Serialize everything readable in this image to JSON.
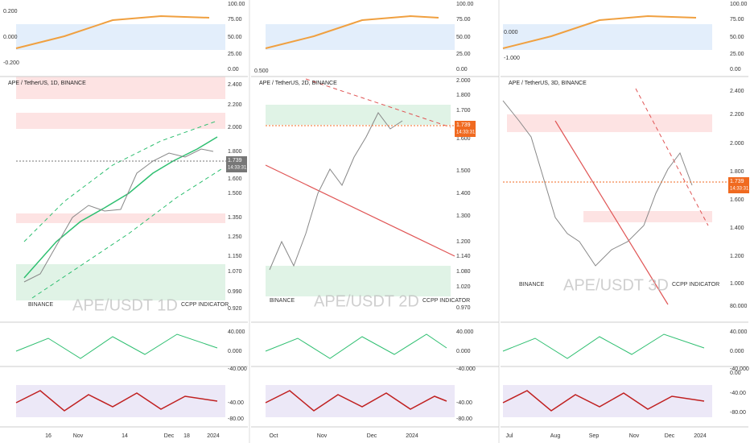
{
  "panels": [
    {
      "title": "APE / TetherUS, 1D, BINANCE",
      "watermark": "APE/USDT 1D",
      "sub_label": "CCPP INDICATOR",
      "brand": "BINANCE",
      "top_left_ticks": [
        "0.200",
        "0.000",
        "-0.200"
      ],
      "top_right_ticks": [
        "100.00",
        "75.00",
        "50.00",
        "25.00",
        "0.00"
      ],
      "price_ticks": [
        "2.400",
        "2.200",
        "2.000",
        "1.800",
        "1.600",
        "1.500",
        "1.350",
        "1.250",
        "1.150",
        "1.070",
        "0.990",
        "0.920"
      ],
      "price_current": "1.739",
      "price_time": "14:33:31",
      "osc_ticks": [
        "40.000",
        "0.000",
        "-40.000"
      ],
      "bottom_ticks": [
        "-40.00",
        "-80.00"
      ],
      "time_labels": [
        "16",
        "Nov",
        "14",
        "Dec",
        "18",
        "2024"
      ]
    },
    {
      "title": "APE / TetherUS, 2D, BINANCE",
      "watermark": "APE/USDT 2D",
      "sub_label": "CCPP INDICATOR",
      "brand": "BINANCE",
      "top_left_ticks": [
        "0.500"
      ],
      "top_right_ticks": [
        "100.00",
        "75.00",
        "50.00",
        "25.00",
        "0.00"
      ],
      "price_ticks": [
        "2.000",
        "1.800",
        "1.700",
        "1.600",
        "1.500",
        "1.400",
        "1.300",
        "1.200",
        "1.140",
        "1.080",
        "1.020",
        "0.970"
      ],
      "price_current": "1.739",
      "price_time": "14:33:31",
      "osc_ticks": [
        "40.000",
        "0.000",
        "-40.000"
      ],
      "bottom_ticks": [
        "-40.00",
        "-80.00"
      ],
      "time_labels": [
        "Oct",
        "Nov",
        "Dec",
        "2024"
      ]
    },
    {
      "title": "APE / TetherUS, 3D, BINANCE",
      "watermark": "APE/USDT 3D",
      "sub_label": "CCPP INDICATOR",
      "brand": "BINANCE",
      "top_left_ticks": [
        "0.000",
        "-1.000"
      ],
      "top_right_ticks": [
        "100.00",
        "75.00",
        "50.00",
        "25.00",
        "0.00"
      ],
      "price_ticks": [
        "2.400",
        "2.200",
        "2.000",
        "1.800",
        "1.600",
        "1.400",
        "1.200",
        "1.000",
        "80.000"
      ],
      "price_current": "1.739",
      "price_time": "14:33:31",
      "osc_ticks": [
        "40.000",
        "0.000",
        "-40.000"
      ],
      "bottom_ticks": [
        "0.00",
        "-40.00",
        "-80.00"
      ],
      "time_labels": [
        "Jul",
        "Aug",
        "Sep",
        "Nov",
        "Dec",
        "2024"
      ]
    }
  ]
}
